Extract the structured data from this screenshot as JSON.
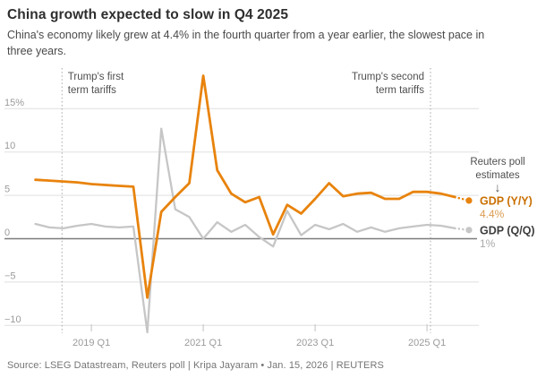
{
  "header": {
    "title": "China growth expected to slow in Q4 2025",
    "subtitle_lines": [
      "China's economy likely grew at 4.4% in the fourth quarter from a year earlier, the slowest pace in",
      "three years."
    ]
  },
  "footer": {
    "source_line": "Source: LSEG Datastream, Reuters poll | Kripa Jayaram • Jan. 15, 2026 | REUTERS"
  },
  "colors": {
    "accent_orange": "#e8830d",
    "line_gray": "#c6c6c6",
    "zero_axis": "#7b7b7b",
    "gridline": "#dfdfdf",
    "axis_label": "#9b9b9b",
    "annotation_text": "#4f4f4f",
    "dotted_guide": "#aeaeae"
  },
  "chart_data": {
    "type": "line",
    "title": "China growth expected to slow in Q4 2025",
    "x_unit": "quarter",
    "x_start": "2018 Q1",
    "x_end": "2025 Q4",
    "x_ticks": [
      {
        "index": 4,
        "label": "2019 Q1"
      },
      {
        "index": 12,
        "label": "2021 Q1"
      },
      {
        "index": 20,
        "label": "2023 Q1"
      },
      {
        "index": 28,
        "label": "2025 Q1"
      }
    ],
    "y_ticks": [
      {
        "value": 15,
        "label": "15%"
      },
      {
        "value": 10,
        "label": "10"
      },
      {
        "value": 5,
        "label": "5"
      },
      {
        "value": 0,
        "label": "0"
      },
      {
        "value": -5,
        "label": "−5"
      },
      {
        "value": -10,
        "label": "−10"
      }
    ],
    "ylim": [
      -12.5,
      20.5
    ],
    "grid": true,
    "legend_position": "right-inline",
    "series": [
      {
        "name": "GDP (Q/Q)",
        "color": "#c6c6c6",
        "label_color": "#3d3d3d",
        "values": [
          1.7,
          1.3,
          1.2,
          1.5,
          1.7,
          1.4,
          1.3,
          1.4,
          -10.8,
          12.7,
          3.4,
          2.5,
          0.0,
          1.9,
          0.8,
          1.6,
          0.2,
          -0.9,
          3.2,
          0.4,
          1.6,
          1.1,
          1.7,
          0.8,
          1.3,
          0.8,
          1.2,
          1.4,
          1.6,
          1.5,
          1.2
        ],
        "estimate_value": 1.0,
        "estimate_label": "1%",
        "estimate_label_color": "#a9a9a9"
      },
      {
        "name": "GDP (Y/Y)",
        "color": "#e8830d",
        "label_color": "#c96f00",
        "values": [
          6.8,
          6.7,
          6.6,
          6.5,
          6.3,
          6.2,
          6.1,
          6.0,
          -6.8,
          3.1,
          4.8,
          6.4,
          18.8,
          7.9,
          5.2,
          4.2,
          4.8,
          0.5,
          3.9,
          2.9,
          4.6,
          6.4,
          4.9,
          5.2,
          5.3,
          4.6,
          4.6,
          5.4,
          5.4,
          5.2,
          4.8
        ],
        "estimate_value": 4.4,
        "estimate_label": "4.4%",
        "estimate_label_color": "#dc9c52"
      }
    ],
    "annotations": [
      {
        "lines": [
          "Trump's first",
          "term tariffs"
        ],
        "quarter_index": 1.9,
        "align": "left"
      },
      {
        "lines": [
          "Trump's second",
          "term tariffs"
        ],
        "quarter_index": 28.25,
        "align": "right"
      }
    ],
    "estimates_note": {
      "lines": [
        "Reuters poll",
        "estimates"
      ],
      "arrow": "↓"
    }
  }
}
